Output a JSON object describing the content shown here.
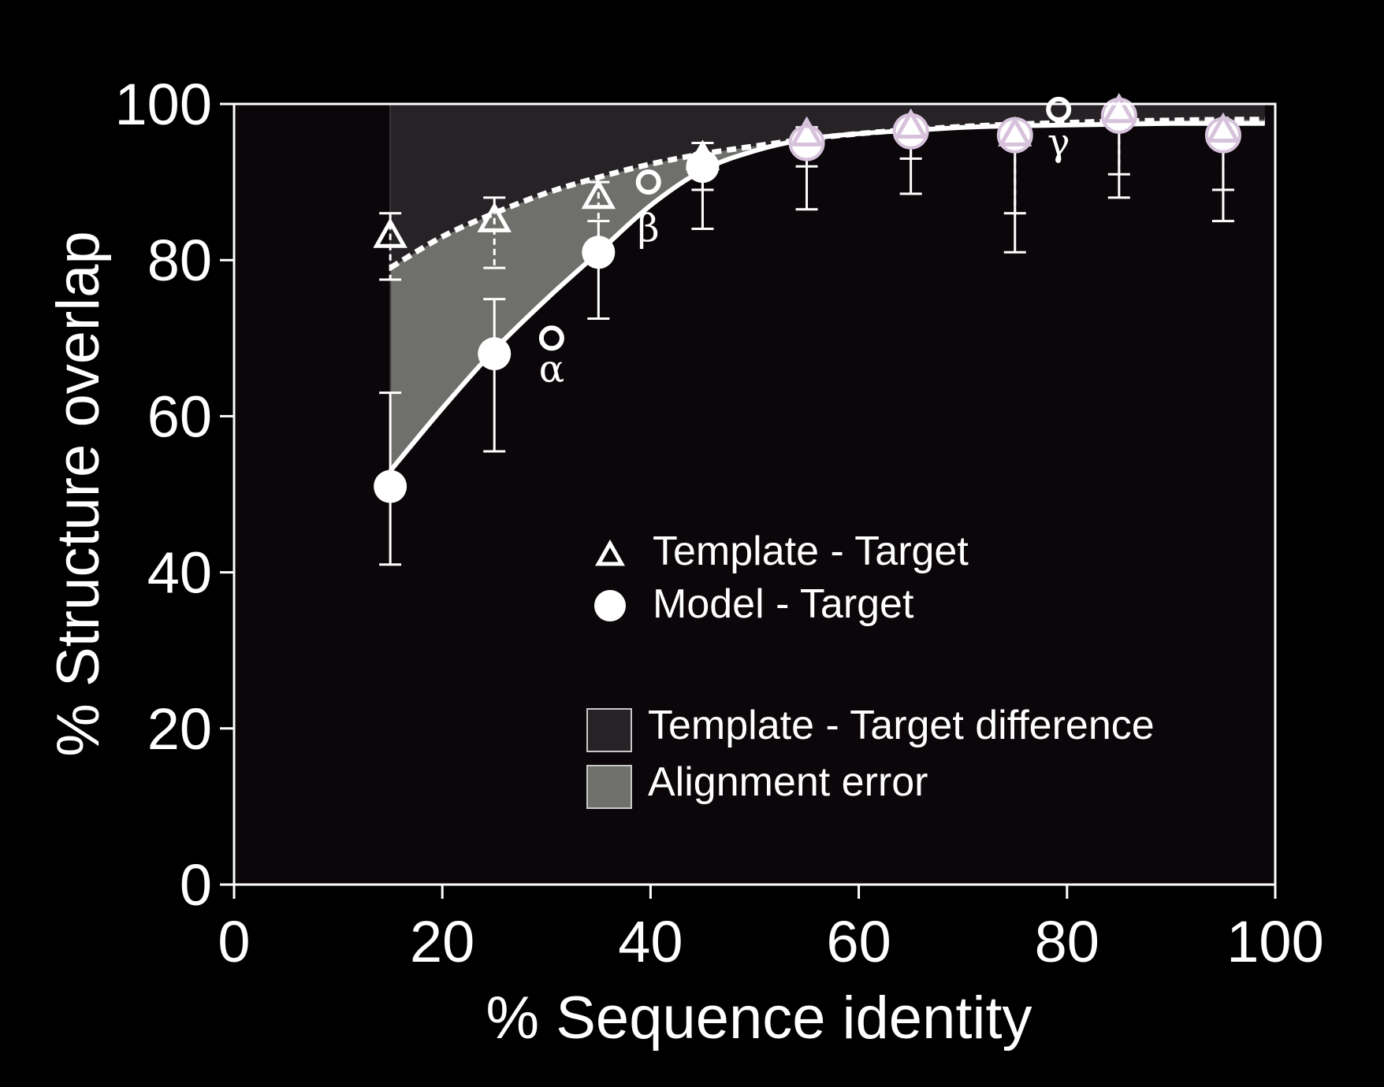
{
  "chart_data": {
    "type": "scatter",
    "title": "",
    "xlabel": "% Sequence identity",
    "ylabel": "% Structure overlap",
    "xlim": [
      0,
      100
    ],
    "ylim": [
      0,
      100
    ],
    "x_ticks": [
      0,
      20,
      40,
      60,
      80,
      100
    ],
    "y_ticks": [
      0,
      20,
      40,
      60,
      80,
      100
    ],
    "grid": false,
    "legend_placement": "center-right",
    "series": [
      {
        "name": "Template - Target",
        "marker": "open-triangle",
        "line_style": "dashed",
        "x": [
          15,
          25,
          35,
          45,
          55,
          65,
          75,
          85,
          95
        ],
        "y": [
          83,
          85,
          88,
          93,
          96,
          97,
          96,
          99,
          96.5
        ],
        "err_low": [
          77.5,
          79,
          82,
          89,
          92,
          93,
          86,
          91,
          89
        ],
        "err_high": [
          86,
          88,
          90,
          95,
          97,
          98,
          97,
          99.5,
          97
        ]
      },
      {
        "name": "Model - Target",
        "marker": "filled-circle",
        "line_style": "solid",
        "x": [
          15,
          25,
          35,
          45,
          55,
          65,
          75,
          85,
          95
        ],
        "y": [
          51,
          68,
          81,
          92,
          95,
          96.5,
          96,
          98.5,
          96
        ],
        "err_low": [
          41,
          55.5,
          72.5,
          84,
          86.5,
          88.5,
          81,
          88,
          85
        ],
        "err_high": [
          63,
          75,
          85,
          95,
          97,
          98,
          97,
          99.5,
          97
        ]
      }
    ],
    "highlighted_points": [
      {
        "label": "α",
        "x": 30.5,
        "y": 70
      },
      {
        "label": "β",
        "x": 39.8,
        "y": 90
      },
      {
        "label": "γ",
        "x": 79.2,
        "y": 99.3
      }
    ],
    "fit_curves": {
      "template": {
        "x": [
          15,
          20,
          25,
          30,
          35,
          40,
          45,
          50,
          55,
          60,
          65,
          70,
          75,
          80,
          85,
          90,
          95,
          99
        ],
        "y": [
          79,
          83,
          86,
          88.6,
          90.6,
          92.3,
          93.6,
          94.6,
          95.5,
          96.2,
          96.7,
          97.1,
          97.4,
          97.6,
          97.8,
          97.9,
          98,
          98
        ]
      },
      "model": {
        "x": [
          15,
          20,
          25,
          30,
          35,
          40,
          45,
          50,
          55,
          60,
          65,
          70,
          75,
          80,
          85,
          90,
          95,
          99
        ],
        "y": [
          53,
          61,
          68.5,
          75,
          81,
          87,
          91.5,
          94,
          95.5,
          96.2,
          96.6,
          97,
          97.2,
          97.3,
          97.4,
          97.5,
          97.5,
          97.5
        ]
      }
    },
    "legend": {
      "markers": [
        {
          "label": "Template - Target",
          "symbol": "open-triangle"
        },
        {
          "label": "Model - Target",
          "symbol": "filled-circle"
        }
      ],
      "regions": [
        {
          "label": "Template - Target difference",
          "color": "#262226"
        },
        {
          "label": "Alignment error",
          "color": "#6f706c"
        }
      ]
    },
    "colors": {
      "background": "#000000",
      "plot_background": "#0a0609",
      "axis": "#ffffff",
      "markers": "#ffffff",
      "marker_tint": "#d7c2db",
      "template_difference_region": "#262226",
      "alignment_error_region": "#6f706c"
    }
  }
}
